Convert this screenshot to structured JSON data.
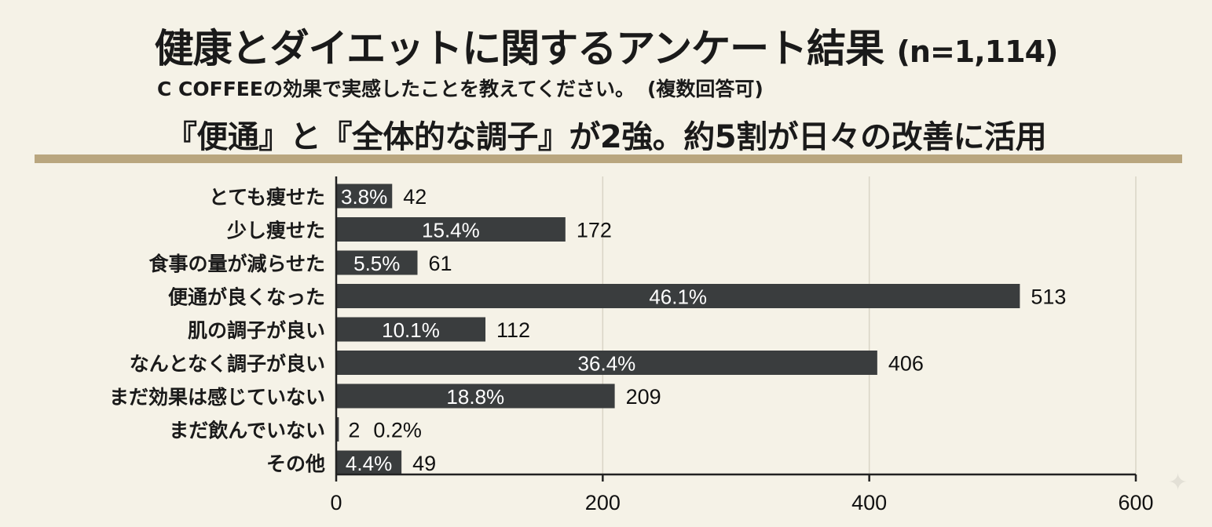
{
  "title": {
    "main": "健康とダイエットに関するアンケート結果",
    "sample": "(n=1,114)"
  },
  "subtitle": {
    "question": "C COFFEEの効果で実感したことを教えてください。",
    "note": "(複数回答可)"
  },
  "headline": "『便通』と『全体的な調子』が2強。約5割が日々の改善に活用",
  "colors": {
    "background": "#f5f2e7",
    "bar": "#3a3d3e",
    "accent": "#b9a67f",
    "grid": "#d9d4c6"
  },
  "chart_data": {
    "type": "bar",
    "orientation": "horizontal",
    "categories": [
      "とても痩せた",
      "少し痩せた",
      "食事の量が減らせた",
      "便通が良くなった",
      "肌の調子が良い",
      "なんとなく調子が良い",
      "まだ効果は感じていない",
      "まだ飲んでいない",
      "その他"
    ],
    "values": [
      42,
      172,
      61,
      513,
      112,
      406,
      209,
      2,
      49
    ],
    "percent_labels": [
      "3.8%",
      "15.4%",
      "5.5%",
      "46.1%",
      "10.1%",
      "36.4%",
      "18.8%",
      "0.2%",
      "4.4%"
    ],
    "xlim": [
      0,
      600
    ],
    "xticks": [
      0,
      200,
      400,
      600
    ],
    "xtick_labels": [
      "0",
      "200",
      "400",
      "600"
    ],
    "grid": true
  }
}
